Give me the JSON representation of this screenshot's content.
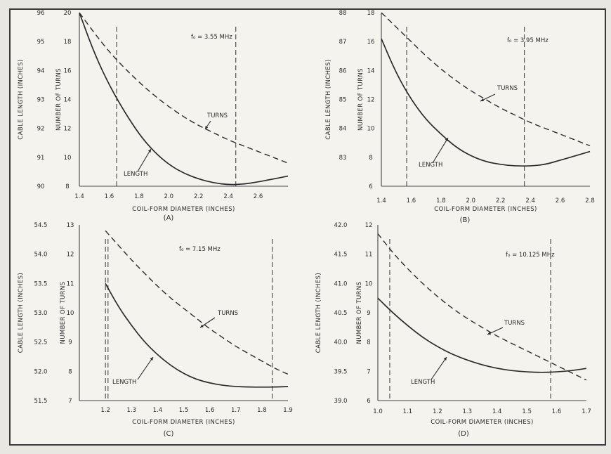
{
  "chart_data": [
    {
      "type": "line",
      "panel_label": "(A)",
      "annotation": "f₀ = 3.55 MHz",
      "xlabel": "COIL-FORM DIAMETER (INCHES)",
      "ylabel_left": "CABLE LENGTH (INCHES)",
      "ylabel_right": "NUMBER OF TURNS",
      "xlim": [
        1.4,
        2.8
      ],
      "xticks": [
        "1.4",
        "1.6",
        "1.8",
        "2.0",
        "2.2",
        "2.4",
        "2.6"
      ],
      "ylim_left": [
        90,
        96
      ],
      "yticks_left": [
        "90",
        "91",
        "92",
        "93",
        "94",
        "95",
        "96"
      ],
      "ylim_right": [
        8,
        20
      ],
      "yticks_right": [
        "8",
        "10",
        "12",
        "14",
        "16",
        "18",
        "20"
      ],
      "vlines": [
        1.65,
        2.45
      ],
      "series": [
        {
          "name": "TURNS",
          "style": "dashed",
          "axis": "right",
          "x": [
            1.4,
            1.5,
            1.6,
            1.7,
            1.8,
            1.9,
            2.0,
            2.1,
            2.2,
            2.3,
            2.4,
            2.5,
            2.6,
            2.7,
            2.8
          ],
          "y": [
            20,
            18.6,
            17.3,
            16.2,
            15.2,
            14.3,
            13.5,
            12.8,
            12.2,
            11.7,
            11.2,
            10.8,
            10.4,
            10.0,
            9.6
          ]
        },
        {
          "name": "LENGTH",
          "style": "solid",
          "axis": "left",
          "x": [
            1.4,
            1.5,
            1.6,
            1.7,
            1.8,
            1.9,
            2.0,
            2.1,
            2.2,
            2.3,
            2.4,
            2.5,
            2.6,
            2.7,
            2.8
          ],
          "y": [
            96.0,
            94.6,
            93.5,
            92.6,
            91.8,
            91.2,
            90.75,
            90.45,
            90.25,
            90.12,
            90.05,
            90.07,
            90.15,
            90.25,
            90.35
          ]
        }
      ],
      "labels": [
        "TURNS",
        "LENGTH"
      ]
    },
    {
      "type": "line",
      "panel_label": "(B)",
      "annotation": "f₀ = 3.95 MHz",
      "xlabel": "COIL-FORM DIAMETER (INCHES)",
      "ylabel_left": "CABLE LENGTH (INCHES)",
      "ylabel_right": "NUMBER OF TURNS",
      "xlim": [
        1.4,
        2.8
      ],
      "xticks": [
        "1.4",
        "1.6",
        "1.8",
        "2.0",
        "2.2",
        "2.4",
        "2.6",
        "2.8"
      ],
      "ylim_left": [
        82,
        88
      ],
      "yticks_left": [
        "83",
        "84",
        "85",
        "86",
        "87",
        "88"
      ],
      "ylim_right": [
        6,
        18
      ],
      "yticks_right": [
        "6",
        "8",
        "10",
        "12",
        "14",
        "16",
        "18"
      ],
      "vlines": [
        1.57,
        2.36
      ],
      "series": [
        {
          "name": "TURNS",
          "style": "dashed",
          "axis": "right",
          "x": [
            1.4,
            1.5,
            1.6,
            1.7,
            1.8,
            1.9,
            2.0,
            2.1,
            2.2,
            2.3,
            2.4,
            2.5,
            2.6,
            2.7,
            2.8
          ],
          "y": [
            18,
            17.0,
            16.0,
            15.0,
            14.1,
            13.3,
            12.6,
            12.0,
            11.4,
            10.9,
            10.4,
            10.0,
            9.6,
            9.2,
            8.8
          ]
        },
        {
          "name": "LENGTH",
          "style": "solid",
          "axis": "left",
          "x": [
            1.4,
            1.5,
            1.6,
            1.7,
            1.8,
            1.9,
            2.0,
            2.1,
            2.2,
            2.3,
            2.4,
            2.5,
            2.6,
            2.7,
            2.8
          ],
          "y": [
            87.1,
            85.9,
            85.0,
            84.3,
            83.8,
            83.35,
            83.05,
            82.85,
            82.75,
            82.7,
            82.7,
            82.75,
            82.9,
            83.05,
            83.2
          ]
        }
      ],
      "labels": [
        "TURNS",
        "LENGTH"
      ]
    },
    {
      "type": "line",
      "panel_label": "(C)",
      "annotation": "f₀ = 7.15 MHz",
      "xlabel": "COIL-FORM DIAMETER (INCHES)",
      "ylabel_left": "CABLE LENGTH (INCHES)",
      "ylabel_right": "NUMBER OF TURNS",
      "xlim": [
        1.1,
        1.9
      ],
      "xticks": [
        "1.2",
        "1.3",
        "1.4",
        "1.5",
        "1.6",
        "1.7",
        "1.8",
        "1.9"
      ],
      "ylim_left": [
        51.5,
        54.5
      ],
      "yticks_left": [
        "51.5",
        "52.0",
        "52.5",
        "53.0",
        "53.5",
        "54.0",
        "54.5"
      ],
      "ylim_right": [
        7,
        13
      ],
      "yticks_right": [
        "7",
        "8",
        "9",
        "10",
        "11",
        "12",
        "13"
      ],
      "vlines": [
        1.2,
        1.21,
        1.84
      ],
      "series": [
        {
          "name": "TURNS",
          "style": "dashed",
          "axis": "right",
          "x": [
            1.2,
            1.25,
            1.3,
            1.35,
            1.4,
            1.45,
            1.5,
            1.55,
            1.6,
            1.65,
            1.7,
            1.75,
            1.8,
            1.85,
            1.9
          ],
          "y": [
            12.8,
            12.3,
            11.8,
            11.35,
            10.9,
            10.5,
            10.15,
            9.8,
            9.45,
            9.15,
            8.85,
            8.6,
            8.35,
            8.1,
            7.9
          ]
        },
        {
          "name": "LENGTH",
          "style": "solid",
          "axis": "left",
          "x": [
            1.2,
            1.25,
            1.3,
            1.35,
            1.4,
            1.45,
            1.5,
            1.55,
            1.6,
            1.65,
            1.7,
            1.75,
            1.8,
            1.85,
            1.9
          ],
          "y": [
            53.5,
            53.1,
            52.78,
            52.5,
            52.28,
            52.1,
            51.96,
            51.86,
            51.8,
            51.76,
            51.74,
            51.73,
            51.73,
            51.73,
            51.74
          ]
        }
      ],
      "labels": [
        "TURNS",
        "LENGTH"
      ]
    },
    {
      "type": "line",
      "panel_label": "(D)",
      "annotation": "f₀ = 10.125 MHz",
      "xlabel": "COIL-FORM DIAMETER (INCHES)",
      "ylabel_left": "CABLE LENGTH (INCHES)",
      "ylabel_right": "NUMBER OF TURNS",
      "xlim": [
        1.0,
        1.7
      ],
      "xticks": [
        "1.0",
        "1.1",
        "1.2",
        "1.3",
        "1.4",
        "1.5",
        "1.6",
        "1.7"
      ],
      "ylim_left": [
        39.0,
        42.0
      ],
      "yticks_left": [
        "39.0",
        "39.5",
        "40.0",
        "40.5",
        "41.0",
        "41.5",
        "42.0"
      ],
      "ylim_right": [
        6,
        12
      ],
      "yticks_right": [
        "6",
        "7",
        "8",
        "9",
        "10",
        "11",
        "12"
      ],
      "vlines": [
        1.04,
        1.58
      ],
      "series": [
        {
          "name": "TURNS",
          "style": "dashed",
          "axis": "right",
          "x": [
            1.0,
            1.05,
            1.1,
            1.15,
            1.2,
            1.25,
            1.3,
            1.35,
            1.4,
            1.45,
            1.5,
            1.55,
            1.6,
            1.65,
            1.7
          ],
          "y": [
            11.7,
            11.05,
            10.5,
            10.0,
            9.55,
            9.15,
            8.8,
            8.5,
            8.2,
            7.95,
            7.7,
            7.45,
            7.2,
            6.95,
            6.7
          ]
        },
        {
          "name": "LENGTH",
          "style": "solid",
          "axis": "left",
          "x": [
            1.0,
            1.05,
            1.1,
            1.15,
            1.2,
            1.25,
            1.3,
            1.35,
            1.4,
            1.45,
            1.5,
            1.55,
            1.6,
            1.65,
            1.7
          ],
          "y": [
            40.75,
            40.5,
            40.28,
            40.08,
            39.92,
            39.79,
            39.69,
            39.61,
            39.55,
            39.51,
            39.49,
            39.48,
            39.49,
            39.51,
            39.55
          ]
        }
      ],
      "labels": [
        "TURNS",
        "LENGTH"
      ]
    }
  ]
}
